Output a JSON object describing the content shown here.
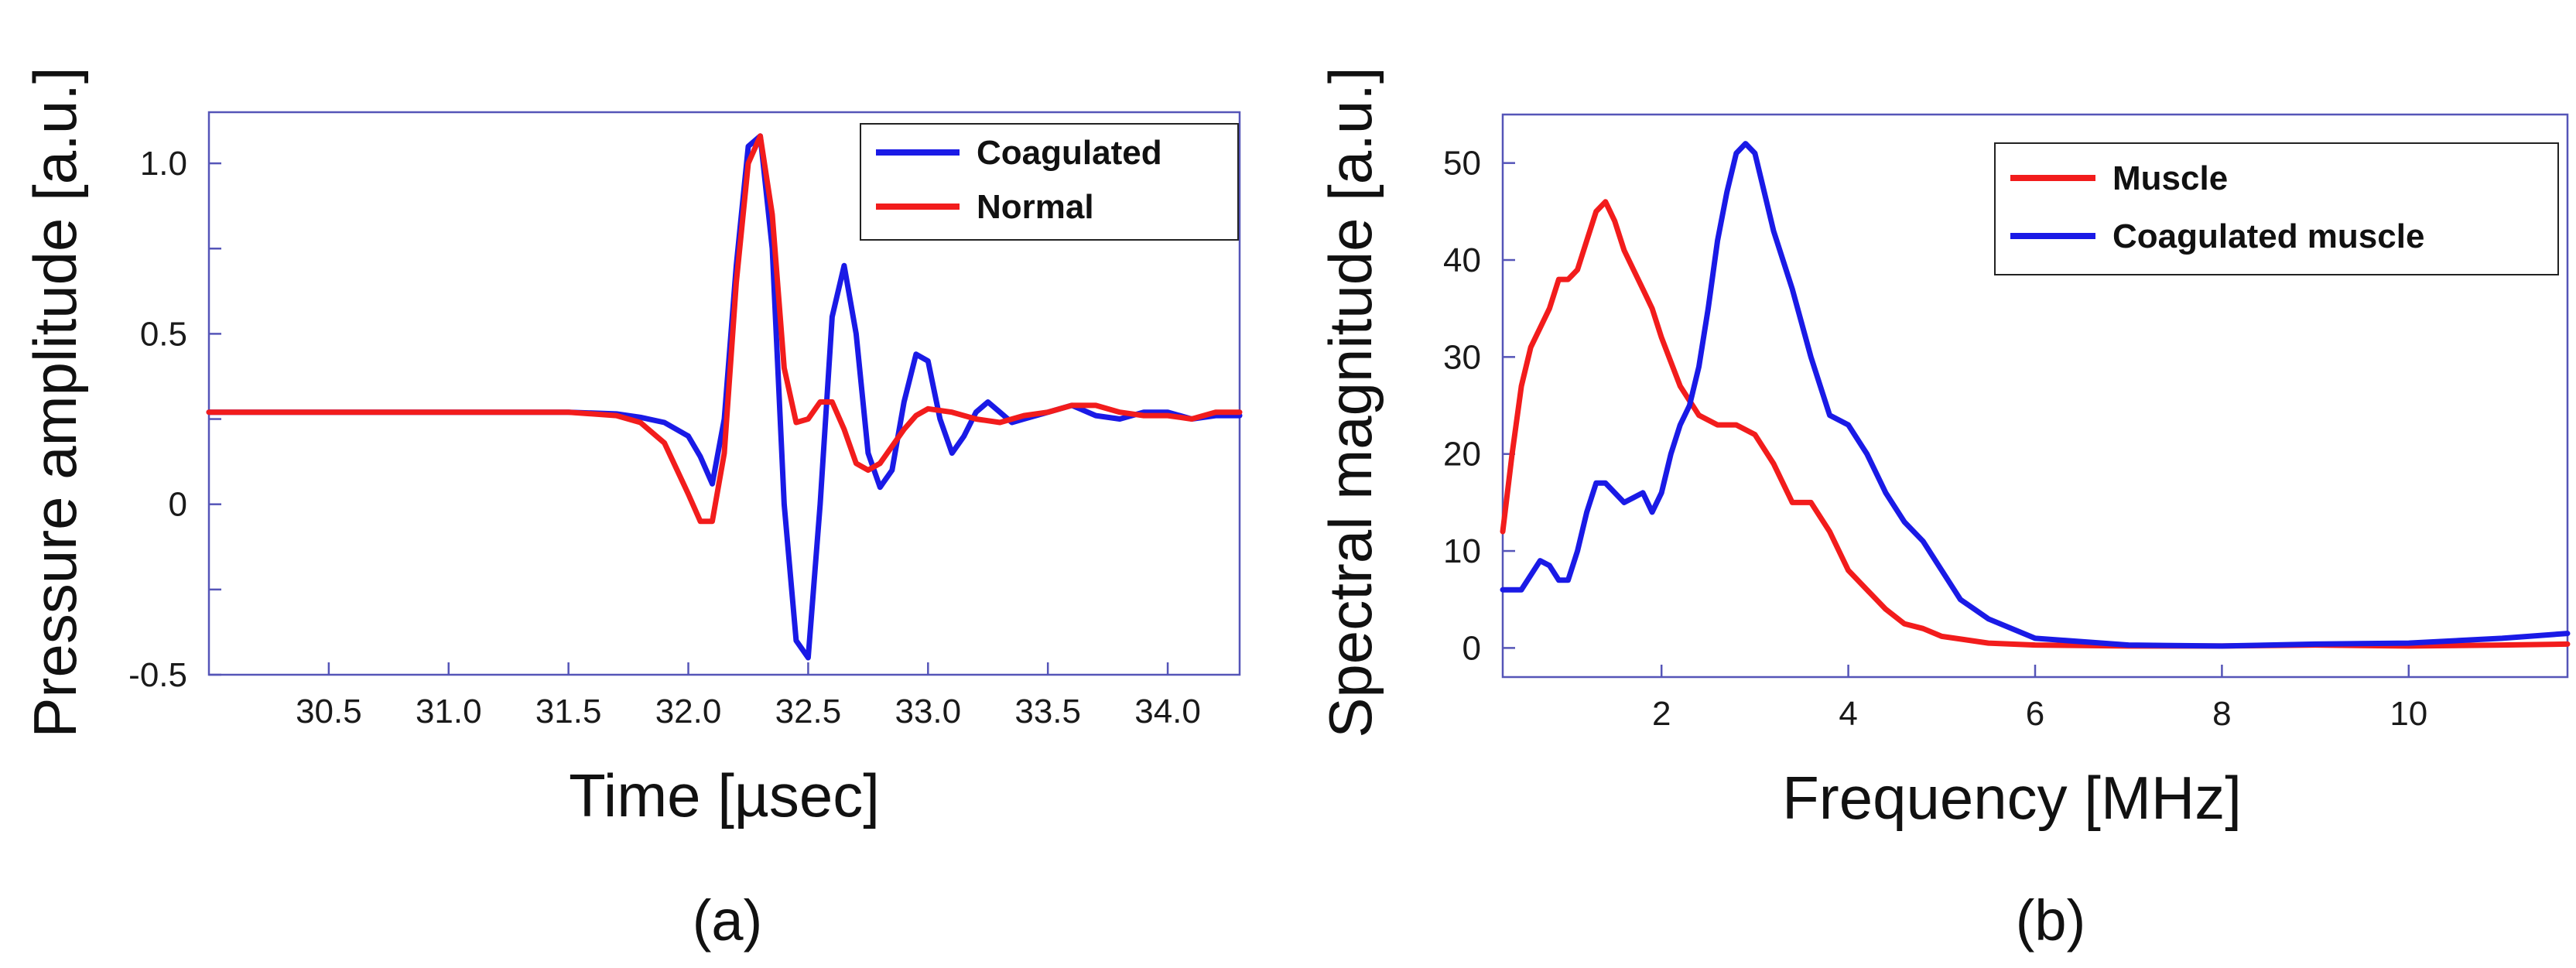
{
  "chart_data": [
    {
      "panel_label": "(a)",
      "type": "line",
      "title": "",
      "xlabel": "Time [µsec]",
      "ylabel": "Pressure amplitude [a.u.]",
      "xlim": [
        30.0,
        34.3
      ],
      "ylim": [
        -0.5,
        1.15
      ],
      "xticks": [
        30.5,
        31.0,
        31.5,
        32.0,
        32.5,
        33.0,
        33.5,
        34.0
      ],
      "xtick_labels": [
        "30.5",
        "31.0",
        "31.5",
        "32.0",
        "32.5",
        "33.0",
        "33.5",
        "34.0"
      ],
      "yticks": [
        -0.5,
        -0.25,
        0,
        0.25,
        0.5,
        0.75,
        1.0
      ],
      "ytick_labels": [
        "-0.5",
        "",
        "0",
        "",
        "0.5",
        "",
        "1.0"
      ],
      "grid": false,
      "legend_position": "top-right",
      "series": [
        {
          "name": "Coagulated",
          "color": "#1a1ae6",
          "x": [
            30.0,
            30.5,
            31.0,
            31.5,
            31.7,
            31.8,
            31.9,
            32.0,
            32.05,
            32.1,
            32.15,
            32.2,
            32.25,
            32.3,
            32.35,
            32.4,
            32.45,
            32.5,
            32.55,
            32.6,
            32.65,
            32.7,
            32.75,
            32.8,
            32.85,
            32.9,
            32.95,
            33.0,
            33.05,
            33.1,
            33.15,
            33.2,
            33.25,
            33.3,
            33.35,
            33.4,
            33.5,
            33.6,
            33.7,
            33.8,
            33.9,
            34.0,
            34.1,
            34.2,
            34.3
          ],
          "values": [
            0.27,
            0.27,
            0.27,
            0.27,
            0.265,
            0.255,
            0.24,
            0.2,
            0.14,
            0.06,
            0.25,
            0.7,
            1.05,
            1.08,
            0.75,
            0.0,
            -0.4,
            -0.45,
            0.0,
            0.55,
            0.7,
            0.5,
            0.15,
            0.05,
            0.1,
            0.3,
            0.44,
            0.42,
            0.25,
            0.15,
            0.2,
            0.27,
            0.3,
            0.27,
            0.24,
            0.25,
            0.27,
            0.29,
            0.26,
            0.25,
            0.27,
            0.27,
            0.25,
            0.26,
            0.26
          ]
        },
        {
          "name": "Normal",
          "color": "#f21c1c",
          "x": [
            30.0,
            30.5,
            31.0,
            31.5,
            31.7,
            31.8,
            31.9,
            32.0,
            32.05,
            32.1,
            32.15,
            32.2,
            32.25,
            32.3,
            32.35,
            32.4,
            32.45,
            32.5,
            32.55,
            32.6,
            32.65,
            32.7,
            32.75,
            32.8,
            32.85,
            32.9,
            32.95,
            33.0,
            33.1,
            33.2,
            33.3,
            33.4,
            33.5,
            33.6,
            33.7,
            33.8,
            33.9,
            34.0,
            34.1,
            34.2,
            34.3
          ],
          "values": [
            0.27,
            0.27,
            0.27,
            0.27,
            0.26,
            0.24,
            0.18,
            0.03,
            -0.05,
            -0.05,
            0.15,
            0.65,
            1.0,
            1.08,
            0.85,
            0.4,
            0.24,
            0.25,
            0.3,
            0.3,
            0.22,
            0.12,
            0.1,
            0.12,
            0.17,
            0.22,
            0.26,
            0.28,
            0.27,
            0.25,
            0.24,
            0.26,
            0.27,
            0.29,
            0.29,
            0.27,
            0.26,
            0.26,
            0.25,
            0.27,
            0.27
          ]
        }
      ]
    },
    {
      "panel_label": "(b)",
      "type": "line",
      "title": "",
      "xlabel": "Frequency [MHz]",
      "ylabel": "Spectral magnitude [a.u.]",
      "xlim": [
        0.3,
        11.7
      ],
      "ylim": [
        -3,
        55
      ],
      "xticks": [
        2,
        4,
        6,
        8,
        10
      ],
      "xtick_labels": [
        "2",
        "4",
        "6",
        "8",
        "10"
      ],
      "yticks": [
        0,
        10,
        20,
        30,
        40,
        50
      ],
      "ytick_labels": [
        "0",
        "10",
        "20",
        "30",
        "40",
        "50"
      ],
      "grid": false,
      "legend_position": "top-right",
      "series": [
        {
          "name": "Muscle",
          "color": "#f21c1c",
          "x": [
            0.3,
            0.4,
            0.5,
            0.6,
            0.7,
            0.8,
            0.9,
            1.0,
            1.1,
            1.2,
            1.3,
            1.4,
            1.5,
            1.6,
            1.7,
            1.8,
            1.9,
            2.0,
            2.2,
            2.4,
            2.6,
            2.8,
            3.0,
            3.2,
            3.4,
            3.6,
            3.8,
            4.0,
            4.2,
            4.4,
            4.6,
            4.8,
            5.0,
            5.5,
            6.0,
            7.0,
            8.0,
            9.0,
            10.0,
            11.0,
            11.7
          ],
          "values": [
            12,
            20,
            27,
            31,
            33,
            35,
            38,
            38,
            39,
            42,
            45,
            46,
            44,
            41,
            39,
            37,
            35,
            32,
            27,
            24,
            23,
            23,
            22,
            19,
            15,
            15,
            12,
            8,
            6,
            4,
            2.5,
            2,
            1.2,
            0.5,
            0.3,
            0.2,
            0.2,
            0.3,
            0.2,
            0.3,
            0.4
          ]
        },
        {
          "name": "Coagulated muscle",
          "color": "#1a1ae6",
          "x": [
            0.3,
            0.5,
            0.7,
            0.8,
            0.9,
            1.0,
            1.1,
            1.2,
            1.3,
            1.4,
            1.5,
            1.6,
            1.7,
            1.8,
            1.9,
            2.0,
            2.1,
            2.2,
            2.3,
            2.4,
            2.5,
            2.6,
            2.7,
            2.8,
            2.9,
            3.0,
            3.1,
            3.2,
            3.3,
            3.4,
            3.6,
            3.8,
            4.0,
            4.2,
            4.4,
            4.6,
            4.8,
            5.0,
            5.2,
            5.5,
            6.0,
            7.0,
            8.0,
            9.0,
            10.0,
            11.0,
            11.7
          ],
          "values": [
            6,
            6,
            9,
            8.5,
            7,
            7,
            10,
            14,
            17,
            17,
            16,
            15,
            15.5,
            16,
            14,
            16,
            20,
            23,
            25,
            29,
            35,
            42,
            47,
            51,
            52,
            51,
            47,
            43,
            40,
            37,
            30,
            24,
            23,
            20,
            16,
            13,
            11,
            8,
            5,
            3,
            1,
            0.3,
            0.2,
            0.4,
            0.5,
            1.0,
            1.5
          ]
        }
      ]
    }
  ]
}
